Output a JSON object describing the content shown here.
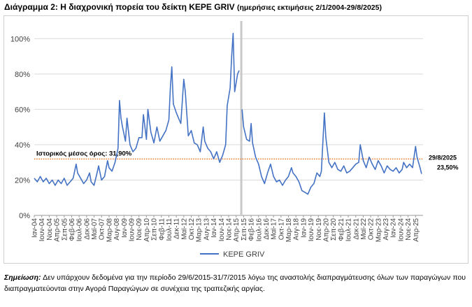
{
  "title": {
    "main": "Διάγραμμα 2: Η διαχρονική πορεία του δείκτη ΚΕΡΕ GRIV",
    "sub": "(ημερήσιες εκτιμήσεις 2/1/2004-29/8/2025)"
  },
  "note": {
    "label": "Σημείωση:",
    "text": "Δεν υπάρχουν δεδομένα για την περίοδο 29/6/2015-31/7/2015 λόγω της αναστολής διαπραγμάτευσης όλων των παραγώγων που διαπραγματεύονται στην Αγορά Παραγώγων σε συνέχεια της τραπεζικής αργίας."
  },
  "chart_data": {
    "type": "line",
    "series": [
      {
        "name": "ΚΕΡΕ GRIV",
        "color": "#4472C4",
        "points": [
          [
            "2004-01",
            21
          ],
          [
            "2004-03",
            19
          ],
          [
            "2004-05",
            22
          ],
          [
            "2004-07",
            19
          ],
          [
            "2004-09",
            21
          ],
          [
            "2004-11",
            18
          ],
          [
            "2005-01",
            20
          ],
          [
            "2005-03",
            17
          ],
          [
            "2005-05",
            20
          ],
          [
            "2005-07",
            18
          ],
          [
            "2005-09",
            21
          ],
          [
            "2005-11",
            17
          ],
          [
            "2006-01",
            19
          ],
          [
            "2006-03",
            21
          ],
          [
            "2006-05",
            29
          ],
          [
            "2006-06",
            24
          ],
          [
            "2006-08",
            21
          ],
          [
            "2006-10",
            18
          ],
          [
            "2006-12",
            20
          ],
          [
            "2007-02",
            24
          ],
          [
            "2007-03",
            19
          ],
          [
            "2007-05",
            17
          ],
          [
            "2007-07",
            24
          ],
          [
            "2007-08",
            28
          ],
          [
            "2007-10",
            20
          ],
          [
            "2007-12",
            22
          ],
          [
            "2008-02",
            31
          ],
          [
            "2008-03",
            27
          ],
          [
            "2008-05",
            25
          ],
          [
            "2008-07",
            30
          ],
          [
            "2008-09",
            38
          ],
          [
            "2008-10",
            65
          ],
          [
            "2008-11",
            55
          ],
          [
            "2008-12",
            50
          ],
          [
            "2009-02",
            42
          ],
          [
            "2009-03",
            55
          ],
          [
            "2009-05",
            40
          ],
          [
            "2009-07",
            36
          ],
          [
            "2009-09",
            38
          ],
          [
            "2009-11",
            44
          ],
          [
            "2010-01",
            44
          ],
          [
            "2010-02",
            57
          ],
          [
            "2010-04",
            43
          ],
          [
            "2010-05",
            60
          ],
          [
            "2010-07",
            47
          ],
          [
            "2010-09",
            41
          ],
          [
            "2010-11",
            50
          ],
          [
            "2011-01",
            42
          ],
          [
            "2011-03",
            45
          ],
          [
            "2011-05",
            48
          ],
          [
            "2011-07",
            54
          ],
          [
            "2011-08",
            72
          ],
          [
            "2011-09",
            84
          ],
          [
            "2011-10",
            63
          ],
          [
            "2011-12",
            58
          ],
          [
            "2012-02",
            54
          ],
          [
            "2012-03",
            52
          ],
          [
            "2012-05",
            77
          ],
          [
            "2012-06",
            70
          ],
          [
            "2012-08",
            45
          ],
          [
            "2012-10",
            48
          ],
          [
            "2012-12",
            41
          ],
          [
            "2013-02",
            40
          ],
          [
            "2013-04",
            36
          ],
          [
            "2013-06",
            50
          ],
          [
            "2013-07",
            42
          ],
          [
            "2013-09",
            38
          ],
          [
            "2013-11",
            36
          ],
          [
            "2014-01",
            32
          ],
          [
            "2014-03",
            36
          ],
          [
            "2014-05",
            30
          ],
          [
            "2014-07",
            34
          ],
          [
            "2014-09",
            40
          ],
          [
            "2014-10",
            62
          ],
          [
            "2014-12",
            72
          ],
          [
            "2015-01",
            90
          ],
          [
            "2015-02",
            103
          ],
          [
            "2015-03",
            70
          ],
          [
            "2015-05",
            80
          ],
          [
            "2015-06",
            82
          ],
          null,
          [
            "2015-08",
            60
          ],
          [
            "2015-09",
            50
          ],
          [
            "2015-11",
            43
          ],
          [
            "2016-01",
            42
          ],
          [
            "2016-02",
            52
          ],
          [
            "2016-03",
            41
          ],
          [
            "2016-05",
            33
          ],
          [
            "2016-07",
            29
          ],
          [
            "2016-09",
            22
          ],
          [
            "2016-11",
            18
          ],
          [
            "2017-01",
            24
          ],
          [
            "2017-03",
            29
          ],
          [
            "2017-05",
            22
          ],
          [
            "2017-07",
            19
          ],
          [
            "2017-09",
            20
          ],
          [
            "2017-11",
            17
          ],
          [
            "2018-01",
            20
          ],
          [
            "2018-03",
            22
          ],
          [
            "2018-05",
            27
          ],
          [
            "2018-06",
            24
          ],
          [
            "2018-08",
            22
          ],
          [
            "2018-10",
            19
          ],
          [
            "2018-12",
            14
          ],
          [
            "2019-02",
            13
          ],
          [
            "2019-04",
            12
          ],
          [
            "2019-06",
            16
          ],
          [
            "2019-08",
            18
          ],
          [
            "2019-10",
            24
          ],
          [
            "2019-12",
            22
          ],
          [
            "2020-01",
            25
          ],
          [
            "2020-03",
            58
          ],
          [
            "2020-04",
            44
          ],
          [
            "2020-06",
            30
          ],
          [
            "2020-08",
            27
          ],
          [
            "2020-10",
            30
          ],
          [
            "2020-12",
            26
          ],
          [
            "2021-02",
            25
          ],
          [
            "2021-04",
            28
          ],
          [
            "2021-06",
            24
          ],
          [
            "2021-08",
            25
          ],
          [
            "2021-10",
            27
          ],
          [
            "2021-12",
            29
          ],
          [
            "2022-02",
            30
          ],
          [
            "2022-03",
            40
          ],
          [
            "2022-05",
            31
          ],
          [
            "2022-07",
            27
          ],
          [
            "2022-09",
            33
          ],
          [
            "2022-11",
            29
          ],
          [
            "2023-01",
            26
          ],
          [
            "2023-03",
            31
          ],
          [
            "2023-05",
            28
          ],
          [
            "2023-07",
            24
          ],
          [
            "2023-09",
            28
          ],
          [
            "2023-11",
            26
          ],
          [
            "2024-01",
            25
          ],
          [
            "2024-03",
            27
          ],
          [
            "2024-05",
            24
          ],
          [
            "2024-07",
            26
          ],
          [
            "2024-08",
            30
          ],
          [
            "2024-10",
            27
          ],
          [
            "2024-12",
            29
          ],
          [
            "2025-02",
            27
          ],
          [
            "2025-04",
            39
          ],
          [
            "2025-05",
            33
          ],
          [
            "2025-07",
            27
          ],
          [
            "2025-08",
            23.5
          ]
        ]
      }
    ],
    "historical_mean": {
      "label": "Ιστορικός μέσος όρος: 31,90%",
      "value": 31.9,
      "color": "#ED7D31"
    },
    "end_annotation": {
      "date_label": "29/8/2025",
      "value_label": "23,50%"
    },
    "missing_period": {
      "start": "2015-06-29",
      "end": "2015-07-31",
      "color": "#C8C8C8"
    },
    "ylim": [
      0,
      110
    ],
    "y_ticks": [
      "0%",
      "20%",
      "40%",
      "60%",
      "80%",
      "100%"
    ],
    "x_tick_labels": [
      "Ιαν-04",
      "Ιουν-04",
      "Νοε-04",
      "Απρ-05",
      "Σεπ-05",
      "Φεβ-06",
      "Ιουλ-06",
      "Δεκ-06",
      "Μαϊ-07",
      "Οκτ-07",
      "Μαρ-08",
      "Αυγ-08",
      "Ιαν-09",
      "Ιουν-09",
      "Νοε-09",
      "Απρ-10",
      "Σεπ-10",
      "Φεβ-11",
      "Ιουλ-11",
      "Δεκ-11",
      "Μαϊ-12",
      "Οκτ-12",
      "Μαρ-13",
      "Αυγ-13",
      "Ιαν-14",
      "Ιουν-14",
      "Νοε-14",
      "Απρ-15",
      "Σεπ-15",
      "Φεβ-16",
      "Ιουλ-16",
      "Δεκ-16",
      "Μαϊ-17",
      "Οκτ-17",
      "Μαρ-18",
      "Αυγ-18",
      "Ιαν-19",
      "Ιουν-19",
      "Νοε-19",
      "Απρ-20",
      "Σεπ-20",
      "Φεβ-21",
      "Ιουλ-21",
      "Δεκ-21",
      "Μαϊ-22",
      "Οκτ-22",
      "Μαρ-23",
      "Αυγ-23",
      "Ιαν-24",
      "Ιουν-24",
      "Νοε-24",
      "Απρ-25"
    ],
    "x_tick_start": "2004-01",
    "x_tick_step_months": 5,
    "legend": {
      "position": "bottom-center",
      "label": "ΚΕΡΕ GRIV"
    },
    "grid": {
      "horizontal": true,
      "vertical": false
    }
  }
}
